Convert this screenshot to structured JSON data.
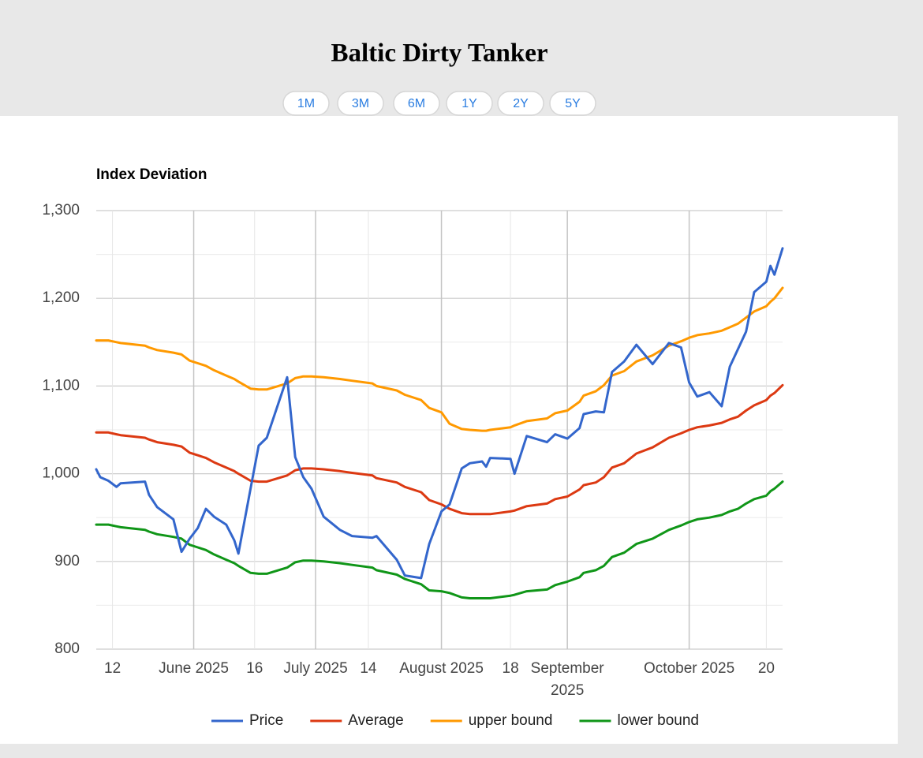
{
  "header": {
    "title": "Baltic Dirty Tanker",
    "buttons": [
      "1M",
      "3M",
      "6M",
      "1Y",
      "2Y",
      "5Y"
    ]
  },
  "chart_data": {
    "type": "line",
    "title": "Index Deviation",
    "x": [
      "2025-05-08",
      "2025-05-09",
      "2025-05-11",
      "2025-05-13",
      "2025-05-14",
      "2025-05-20",
      "2025-05-21",
      "2025-05-23",
      "2025-05-27",
      "2025-05-29",
      "2025-05-31",
      "2025-06-02",
      "2025-06-04",
      "2025-06-06",
      "2025-06-09",
      "2025-06-11",
      "2025-06-12",
      "2025-06-15",
      "2025-06-17",
      "2025-06-19",
      "2025-06-24",
      "2025-06-26",
      "2025-06-28",
      "2025-06-30",
      "2025-07-03",
      "2025-07-07",
      "2025-07-10",
      "2025-07-15",
      "2025-07-16",
      "2025-07-21",
      "2025-07-23",
      "2025-07-27",
      "2025-07-29",
      "2025-08-01",
      "2025-08-03",
      "2025-08-06",
      "2025-08-08",
      "2025-08-11",
      "2025-08-12",
      "2025-08-13",
      "2025-08-18",
      "2025-08-19",
      "2025-08-22",
      "2025-08-27",
      "2025-08-29",
      "2025-09-01",
      "2025-09-04",
      "2025-09-05",
      "2025-09-08",
      "2025-09-10",
      "2025-09-12",
      "2025-09-15",
      "2025-09-18",
      "2025-09-22",
      "2025-09-26",
      "2025-09-29",
      "2025-10-01",
      "2025-10-03",
      "2025-10-06",
      "2025-10-09",
      "2025-10-11",
      "2025-10-13",
      "2025-10-15",
      "2025-10-17",
      "2025-10-20",
      "2025-10-21",
      "2025-10-22",
      "2025-10-24"
    ],
    "series": [
      {
        "name": "Price",
        "color": "#3366cc",
        "values": [
          1005,
          996,
          992,
          985,
          989,
          991,
          976,
          962,
          948,
          911,
          926,
          938,
          960,
          951,
          942,
          924,
          909,
          983,
          1032,
          1041,
          1110,
          1019,
          996,
          983,
          951,
          936,
          929,
          927,
          929,
          902,
          884,
          881,
          920,
          957,
          965,
          1006,
          1012,
          1014,
          1008,
          1018,
          1017,
          1000,
          1043,
          1036,
          1045,
          1040,
          1052,
          1068,
          1071,
          1070,
          1116,
          1128,
          1147,
          1125,
          1149,
          1144,
          1104,
          1088,
          1093,
          1077,
          1122,
          1142,
          1162,
          1207,
          1219,
          1237,
          1227,
          1257
        ]
      },
      {
        "name": "Average",
        "color": "#dc3912",
        "values": [
          1047,
          1047,
          1047,
          1045,
          1044,
          1041,
          1039,
          1036,
          1033,
          1031,
          1024,
          1021,
          1018,
          1013,
          1007,
          1003,
          1000,
          992,
          991,
          991,
          998,
          1004,
          1006,
          1006,
          1005,
          1003,
          1001,
          998,
          995,
          990,
          985,
          979,
          970,
          965,
          960,
          955,
          954,
          954,
          954,
          954,
          957,
          958,
          963,
          966,
          971,
          974,
          982,
          987,
          990,
          996,
          1007,
          1012,
          1023,
          1030,
          1041,
          1046,
          1050,
          1053,
          1055,
          1058,
          1062,
          1065,
          1072,
          1078,
          1084,
          1089,
          1092,
          1101
        ]
      },
      {
        "name": "upper bound",
        "color": "#ff9900",
        "values": [
          1152,
          1152,
          1152,
          1150,
          1149,
          1146,
          1144,
          1141,
          1138,
          1136,
          1129,
          1126,
          1123,
          1118,
          1112,
          1108,
          1105,
          1097,
          1096,
          1096,
          1103,
          1109,
          1111,
          1111,
          1110,
          1108,
          1106,
          1103,
          1100,
          1095,
          1090,
          1084,
          1075,
          1070,
          1057,
          1051,
          1050,
          1049,
          1049,
          1050,
          1053,
          1055,
          1060,
          1063,
          1069,
          1072,
          1082,
          1089,
          1094,
          1101,
          1112,
          1117,
          1128,
          1135,
          1146,
          1151,
          1155,
          1158,
          1160,
          1163,
          1167,
          1171,
          1178,
          1185,
          1191,
          1196,
          1200,
          1212
        ]
      },
      {
        "name": "lower bound",
        "color": "#109618",
        "values": [
          942,
          942,
          942,
          940,
          939,
          936,
          934,
          931,
          928,
          926,
          919,
          916,
          913,
          908,
          902,
          898,
          895,
          887,
          886,
          886,
          893,
          899,
          901,
          901,
          900,
          898,
          896,
          893,
          890,
          885,
          880,
          874,
          867,
          866,
          864,
          859,
          858,
          858,
          858,
          858,
          861,
          862,
          866,
          868,
          873,
          877,
          882,
          887,
          890,
          895,
          905,
          910,
          920,
          926,
          936,
          941,
          945,
          948,
          950,
          953,
          957,
          960,
          966,
          971,
          975,
          980,
          983,
          991
        ]
      }
    ],
    "xlim": [
      "2025-05-08",
      "2025-10-24"
    ],
    "xticks": [
      {
        "value": "2025-05-12",
        "label": "12"
      },
      {
        "value": "2025-06-01",
        "label": "June 2025"
      },
      {
        "value": "2025-06-16",
        "label": "16"
      },
      {
        "value": "2025-07-01",
        "label": "July 2025"
      },
      {
        "value": "2025-07-14",
        "label": "14"
      },
      {
        "value": "2025-08-01",
        "label": "August 2025"
      },
      {
        "value": "2025-08-18",
        "label": "18"
      },
      {
        "value": "2025-09-01",
        "label": "September 2025"
      },
      {
        "value": "2025-10-01",
        "label": "October 2025"
      },
      {
        "value": "2025-10-20",
        "label": "20"
      }
    ],
    "ylim": [
      800,
      1300
    ],
    "yticks": [
      800,
      900,
      {
        "value": 1000,
        "label": "1,000"
      },
      {
        "value": 1100,
        "label": "1,100"
      },
      {
        "value": 1200,
        "label": "1,200"
      },
      {
        "value": 1300,
        "label": "1,300"
      }
    ],
    "grid": true,
    "legend": "bottom"
  }
}
